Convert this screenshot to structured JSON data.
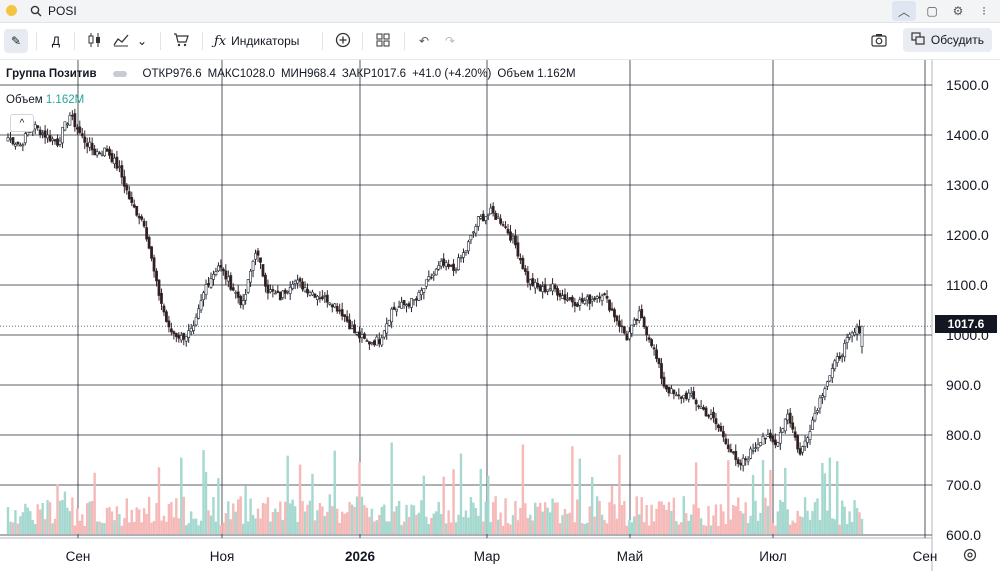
{
  "topbar": {
    "search_value": "POSI"
  },
  "toolbar": {
    "interval_label": "Д",
    "indicators_label": "Индикаторы",
    "discuss_label": "Обсудить"
  },
  "legend": {
    "symbol": "Группа Позитив",
    "open_label": "ОТКР",
    "open": "976.6",
    "high_label": "МАКС",
    "high": "1028.0",
    "low_label": "МИН",
    "low": "968.4",
    "close_label": "ЗАКР",
    "close": "1017.6",
    "change": "+41.0 (+4.20%)",
    "volume_label": "Объем",
    "volume": "1.162M"
  },
  "volume_legend": {
    "label": "Объем",
    "value": "1.162M"
  },
  "last_price": "1017.6",
  "colors": {
    "up": "#26a69a",
    "down": "#ef5350",
    "vol_up": "#a5d8cf",
    "vol_down": "#f5b9b8"
  },
  "chart_data": {
    "type": "candlestick",
    "y_ticks": [
      "1500.0",
      "1400.0",
      "1300.0",
      "1200.0",
      "1100.0",
      "1000.0",
      "900.0",
      "800.0",
      "700.0",
      "600.0"
    ],
    "x_ticks": [
      "Сен",
      "Ноя",
      "2026",
      "Мар",
      "Май",
      "Июл",
      "Сен"
    ],
    "ylim": [
      600,
      1560
    ],
    "last": 1017.6,
    "close_path": [
      [
        0,
        1395
      ],
      [
        5,
        1380
      ],
      [
        10,
        1420
      ],
      [
        15,
        1400
      ],
      [
        20,
        1385
      ],
      [
        25,
        1440
      ],
      [
        30,
        1395
      ],
      [
        35,
        1365
      ],
      [
        40,
        1370
      ],
      [
        45,
        1330
      ],
      [
        50,
        1260
      ],
      [
        55,
        1225
      ],
      [
        60,
        1100
      ],
      [
        65,
        1010
      ],
      [
        70,
        995
      ],
      [
        75,
        1010
      ],
      [
        80,
        1100
      ],
      [
        85,
        1140
      ],
      [
        90,
        1100
      ],
      [
        95,
        1060
      ],
      [
        100,
        1170
      ],
      [
        105,
        1090
      ],
      [
        110,
        1075
      ],
      [
        115,
        1110
      ],
      [
        120,
        1095
      ],
      [
        125,
        1080
      ],
      [
        130,
        1070
      ],
      [
        135,
        1045
      ],
      [
        140,
        1005
      ],
      [
        145,
        985
      ],
      [
        150,
        990
      ],
      [
        155,
        1050
      ],
      [
        160,
        1060
      ],
      [
        165,
        1070
      ],
      [
        170,
        1110
      ],
      [
        175,
        1140
      ],
      [
        180,
        1130
      ],
      [
        185,
        1170
      ],
      [
        190,
        1230
      ],
      [
        195,
        1245
      ],
      [
        200,
        1225
      ],
      [
        205,
        1180
      ],
      [
        210,
        1110
      ],
      [
        215,
        1090
      ],
      [
        220,
        1095
      ],
      [
        225,
        1075
      ],
      [
        230,
        1065
      ],
      [
        235,
        1070
      ],
      [
        240,
        1085
      ],
      [
        245,
        1040
      ],
      [
        250,
        995
      ],
      [
        255,
        1040
      ],
      [
        260,
        985
      ],
      [
        265,
        900
      ],
      [
        270,
        875
      ],
      [
        275,
        880
      ],
      [
        280,
        855
      ],
      [
        285,
        830
      ],
      [
        290,
        790
      ],
      [
        295,
        735
      ],
      [
        300,
        765
      ],
      [
        305,
        800
      ],
      [
        310,
        780
      ],
      [
        315,
        845
      ],
      [
        320,
        760
      ],
      [
        325,
        830
      ],
      [
        330,
        900
      ],
      [
        335,
        950
      ],
      [
        340,
        995
      ],
      [
        345,
        1017.6
      ]
    ]
  }
}
